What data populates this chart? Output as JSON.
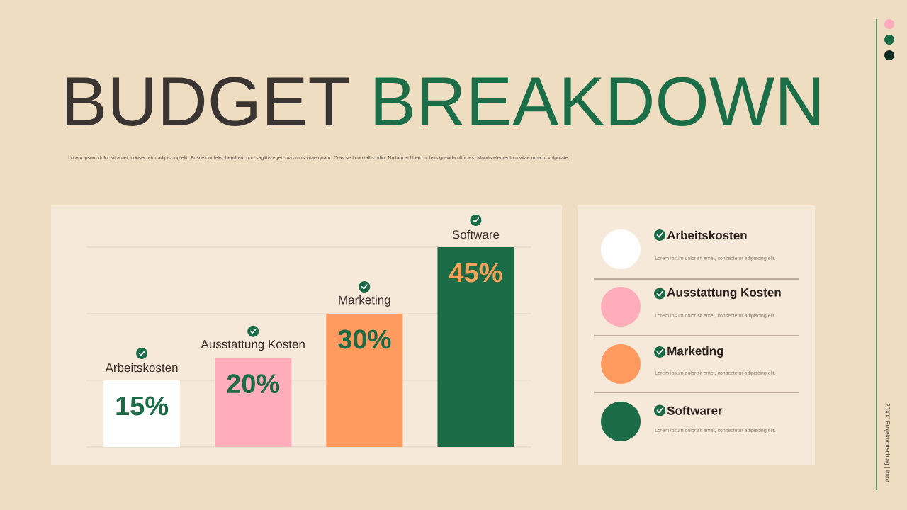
{
  "chart_data": [
    {
      "type": "bar",
      "title": "BUDGET BREAKDOWN",
      "subtitle": "Lorem ipsum dolor sit amet, consectetur adipiscing elit. Fusce dui felis, hendrerit non sagittis eget, maximus vitae quam. Cras sed convallis odio. Nullam at libero ut felis gravida ultricies. Mauris elementum vitae urna ut vulputate.",
      "categories": [
        "Arbeitskosten",
        "Ausstattung Kosten",
        "Marketing",
        "Software"
      ],
      "values": [
        15,
        20,
        30,
        45
      ],
      "colors": [
        "#ffffff",
        "#ffadbb",
        "#ff9a5e",
        "#1b6b47"
      ],
      "value_labels": [
        "15%",
        "20%",
        "30%",
        "45%"
      ],
      "ylim": [
        0,
        45
      ],
      "yticks": [
        {
          "value": 0,
          "label": null
        },
        {
          "value": 15,
          "label": null
        },
        {
          "value": 30,
          "label": null
        },
        {
          "value": 45,
          "label": null
        }
      ],
      "grid": "y",
      "tick_labels": "x",
      "annotations": [
        "20XX' Projektvorschlag | Intro"
      ]
    },
    {
      "type": "other",
      "annotations": [
        "Arbeitskosten",
        "Lorem ipsum dolor sit amet, consectetur adipiscing elit.",
        "Ausstattung Kosten",
        "Lorem ipsum dolor sit amet, consectetur adipiscing elit.",
        "Marketing",
        "Lorem ipsum dolor sit amet, consectetur adipiscing elit.",
        "Softwarer",
        "Lorem ipsum dolor sit amet, consectetur adipiscing elit."
      ]
    }
  ]
}
